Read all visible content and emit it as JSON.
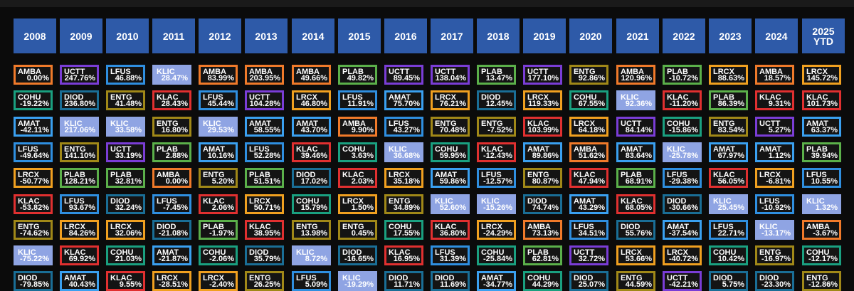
{
  "chart_data": {
    "type": "table",
    "title": "",
    "columns": [
      "2008",
      "2009",
      "2010",
      "2011",
      "2012",
      "2013",
      "2014",
      "2015",
      "2016",
      "2017",
      "2018",
      "2019",
      "2020",
      "2021",
      "2022",
      "2023",
      "2024",
      "2025\nYTD"
    ],
    "colors": {
      "AMBA": "#f07a2a",
      "UCTT": "#7a3dd6",
      "LFUS": "#2f8fe0",
      "KLIC": "#8fa4e3",
      "PLAB": "#5bb04a",
      "ENTG": "#a08818",
      "LRCX": "#f0a020",
      "COHU": "#1aa080",
      "DIOD": "#1a6e96",
      "AMAT": "#3aa0f0",
      "KLAC": "#e03030"
    },
    "highlight_ticker": "KLIC",
    "rows": [
      [
        [
          "AMBA",
          "0.00%"
        ],
        [
          "UCTT",
          "247.76%"
        ],
        [
          "LFUS",
          "46.88%"
        ],
        [
          "KLIC",
          "28.47%"
        ],
        [
          "AMBA",
          "83.99%"
        ],
        [
          "AMBA",
          "203.95%"
        ],
        [
          "AMBA",
          "49.66%"
        ],
        [
          "PLAB",
          "49.82%"
        ],
        [
          "UCTT",
          "89.45%"
        ],
        [
          "UCTT",
          "138.04%"
        ],
        [
          "PLAB",
          "13.47%"
        ],
        [
          "UCTT",
          "177.10%"
        ],
        [
          "ENTG",
          "92.86%"
        ],
        [
          "AMBA",
          "120.96%"
        ],
        [
          "PLAB",
          "-10.72%"
        ],
        [
          "LRCX",
          "88.63%"
        ],
        [
          "AMBA",
          "18.57%"
        ],
        [
          "LRCX",
          "145.72%"
        ]
      ],
      [
        [
          "COHU",
          "-19.22%"
        ],
        [
          "DIOD",
          "236.80%"
        ],
        [
          "ENTG",
          "41.48%"
        ],
        [
          "KLAC",
          "28.43%"
        ],
        [
          "LFUS",
          "45.44%"
        ],
        [
          "UCTT",
          "104.28%"
        ],
        [
          "LRCX",
          "46.80%"
        ],
        [
          "LFUS",
          "11.91%"
        ],
        [
          "AMAT",
          "75.70%"
        ],
        [
          "LRCX",
          "76.21%"
        ],
        [
          "DIOD",
          "12.45%"
        ],
        [
          "LRCX",
          "119.33%"
        ],
        [
          "COHU",
          "67.55%"
        ],
        [
          "KLIC",
          "92.36%"
        ],
        [
          "KLAC",
          "-11.20%"
        ],
        [
          "PLAB",
          "86.39%"
        ],
        [
          "KLAC",
          "9.31%"
        ],
        [
          "KLAC",
          "101.73%"
        ]
      ],
      [
        [
          "AMAT",
          "-42.11%"
        ],
        [
          "KLIC",
          "217.06%"
        ],
        [
          "KLIC",
          "33.58%"
        ],
        [
          "ENTG",
          "16.80%"
        ],
        [
          "KLIC",
          "29.53%"
        ],
        [
          "AMAT",
          "58.55%"
        ],
        [
          "AMAT",
          "43.70%"
        ],
        [
          "AMBA",
          "9.90%"
        ],
        [
          "LFUS",
          "43.27%"
        ],
        [
          "ENTG",
          "70.48%"
        ],
        [
          "ENTG",
          "-7.52%"
        ],
        [
          "KLAC",
          "103.99%"
        ],
        [
          "LRCX",
          "64.18%"
        ],
        [
          "UCTT",
          "84.14%"
        ],
        [
          "COHU",
          "-15.86%"
        ],
        [
          "ENTG",
          "83.54%"
        ],
        [
          "UCTT",
          "5.27%"
        ],
        [
          "AMAT",
          "63.37%"
        ]
      ],
      [
        [
          "LFUS",
          "-49.64%"
        ],
        [
          "ENTG",
          "141.10%"
        ],
        [
          "UCTT",
          "33.19%"
        ],
        [
          "PLAB",
          "2.88%"
        ],
        [
          "AMAT",
          "10.16%"
        ],
        [
          "LFUS",
          "52.28%"
        ],
        [
          "KLAC",
          "39.46%"
        ],
        [
          "COHU",
          "3.63%"
        ],
        [
          "KLIC",
          "36.68%"
        ],
        [
          "COHU",
          "59.95%"
        ],
        [
          "KLAC",
          "-12.43%"
        ],
        [
          "AMAT",
          "89.86%"
        ],
        [
          "AMBA",
          "51.62%"
        ],
        [
          "AMAT",
          "83.64%"
        ],
        [
          "KLIC",
          "-25.78%"
        ],
        [
          "AMAT",
          "67.97%"
        ],
        [
          "AMAT",
          "1.12%"
        ],
        [
          "PLAB",
          "39.94%"
        ]
      ],
      [
        [
          "LRCX",
          "-50.77%"
        ],
        [
          "PLAB",
          "128.21%"
        ],
        [
          "PLAB",
          "32.81%"
        ],
        [
          "AMBA",
          "0.00%"
        ],
        [
          "ENTG",
          "5.20%"
        ],
        [
          "PLAB",
          "51.51%"
        ],
        [
          "DIOD",
          "17.02%"
        ],
        [
          "KLAC",
          "2.03%"
        ],
        [
          "LRCX",
          "35.18%"
        ],
        [
          "AMAT",
          "59.86%"
        ],
        [
          "LFUS",
          "-12.57%"
        ],
        [
          "ENTG",
          "80.87%"
        ],
        [
          "KLAC",
          "47.94%"
        ],
        [
          "PLAB",
          "68.91%"
        ],
        [
          "LFUS",
          "-29.38%"
        ],
        [
          "KLAC",
          "56.05%"
        ],
        [
          "LRCX",
          "-6.81%"
        ],
        [
          "LFUS",
          "10.55%"
        ]
      ],
      [
        [
          "KLAC",
          "-53.82%"
        ],
        [
          "LFUS",
          "93.67%"
        ],
        [
          "DIOD",
          "32.24%"
        ],
        [
          "LFUS",
          "-7.45%"
        ],
        [
          "KLAC",
          "2.06%"
        ],
        [
          "LRCX",
          "50.71%"
        ],
        [
          "COHU",
          "15.79%"
        ],
        [
          "LRCX",
          "1.50%"
        ],
        [
          "ENTG",
          "34.89%"
        ],
        [
          "KLIC",
          "52.60%"
        ],
        [
          "KLIC",
          "-15.26%"
        ],
        [
          "DIOD",
          "74.74%"
        ],
        [
          "AMAT",
          "43.29%"
        ],
        [
          "KLAC",
          "68.05%"
        ],
        [
          "DIOD",
          "-30.66%"
        ],
        [
          "KLIC",
          "25.45%"
        ],
        [
          "LFUS",
          "-10.92%"
        ],
        [
          "KLIC",
          "1.32%"
        ]
      ],
      [
        [
          "ENTG",
          "-74.62%"
        ],
        [
          "LRCX",
          "84.26%"
        ],
        [
          "LRCX",
          "32.06%"
        ],
        [
          "DIOD",
          "-21.08%"
        ],
        [
          "PLAB",
          "-1.97%"
        ],
        [
          "KLAC",
          "38.95%"
        ],
        [
          "ENTG",
          "13.98%"
        ],
        [
          "ENTG",
          "0.45%"
        ],
        [
          "COHU",
          "17.55%"
        ],
        [
          "KLAC",
          "36.80%"
        ],
        [
          "LRCX",
          "-24.29%"
        ],
        [
          "AMBA",
          "73.13%"
        ],
        [
          "LFUS",
          "34.51%"
        ],
        [
          "DIOD",
          "55.76%"
        ],
        [
          "AMAT",
          "-37.54%"
        ],
        [
          "LFUS",
          "22.71%"
        ],
        [
          "KLIC",
          "-13.17%"
        ],
        [
          "AMBA",
          "-3.67%"
        ]
      ],
      [
        [
          "KLIC",
          "-75.22%"
        ],
        [
          "KLAC",
          "69.92%"
        ],
        [
          "COHU",
          "21.03%"
        ],
        [
          "AMAT",
          "-21.87%"
        ],
        [
          "COHU",
          "-2.06%"
        ],
        [
          "DIOD",
          "35.79%"
        ],
        [
          "KLIC",
          "8.72%"
        ],
        [
          "DIOD",
          "-16.65%"
        ],
        [
          "KLAC",
          "16.95%"
        ],
        [
          "LFUS",
          "31.39%"
        ],
        [
          "COHU",
          "-25.84%"
        ],
        [
          "PLAB",
          "62.81%"
        ],
        [
          "UCTT",
          "32.72%"
        ],
        [
          "LRCX",
          "53.66%"
        ],
        [
          "LRCX",
          "-40.72%"
        ],
        [
          "COHU",
          "10.42%"
        ],
        [
          "ENTG",
          "-16.97%"
        ],
        [
          "COHU",
          "-12.17%"
        ]
      ],
      [
        [
          "DIOD",
          "-79.85%"
        ],
        [
          "AMAT",
          "40.43%"
        ],
        [
          "KLAC",
          "9.55%"
        ],
        [
          "LRCX",
          "-28.51%"
        ],
        [
          "LRCX",
          "-2.40%"
        ],
        [
          "ENTG",
          "26.25%"
        ],
        [
          "LFUS",
          "5.09%"
        ],
        [
          "KLIC",
          "-19.29%"
        ],
        [
          "DIOD",
          "11.71%"
        ],
        [
          "DIOD",
          "11.69%"
        ],
        [
          "AMAT",
          "-34.77%"
        ],
        [
          "COHU",
          "44.29%"
        ],
        [
          "DIOD",
          "25.07%"
        ],
        [
          "ENTG",
          "44.59%"
        ],
        [
          "UCTT",
          "-42.21%"
        ],
        [
          "DIOD",
          "5.75%"
        ],
        [
          "DIOD",
          "-23.30%"
        ],
        [
          "ENTG",
          "-12.86%"
        ]
      ]
    ]
  }
}
